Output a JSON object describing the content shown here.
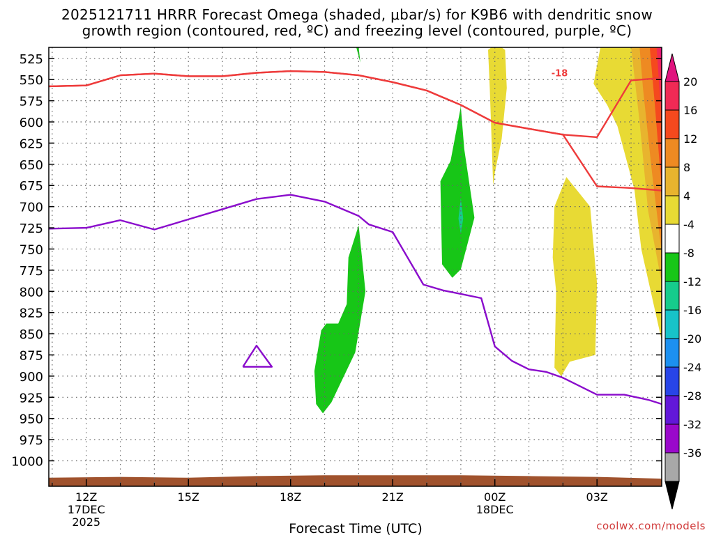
{
  "chart_data": {
    "type": "heatmap",
    "title_line1": "2025121711 HRRR Forecast Omega (shaded, μbar/s) for K9B6 with dendritic snow",
    "title_line2": "growth region (contoured, red, ºC) and freezing level (contoured, purple, ºC)",
    "xlabel": "Forecast Time (UTC)",
    "ylabel": "",
    "credit": "coolwx.com/models",
    "xlim": [
      10.9,
      28.9
    ],
    "ylim": [
      1030,
      512
    ],
    "x_ticks": [
      {
        "x": 12,
        "l1": "12Z",
        "l2": "17DEC",
        "l3": "2025"
      },
      {
        "x": 15,
        "l1": "15Z",
        "l2": "",
        "l3": ""
      },
      {
        "x": 18,
        "l1": "18Z",
        "l2": "",
        "l3": ""
      },
      {
        "x": 21,
        "l1": "21Z",
        "l2": "",
        "l3": ""
      },
      {
        "x": 24,
        "l1": "00Z",
        "l2": "18DEC",
        "l3": ""
      },
      {
        "x": 27,
        "l1": "03Z",
        "l2": "",
        "l3": ""
      }
    ],
    "y_ticks": [
      525,
      550,
      575,
      600,
      625,
      650,
      675,
      700,
      725,
      750,
      775,
      800,
      825,
      850,
      875,
      900,
      925,
      950,
      975,
      1000
    ],
    "contour_label": "-18",
    "colorbar": {
      "labels": [
        "20",
        "16",
        "12",
        "8",
        "4",
        "-4",
        "-8",
        "-12",
        "-16",
        "-20",
        "-24",
        "-28",
        "-32",
        "-36"
      ],
      "colors": [
        "#f02a55",
        "#f5491e",
        "#ee8a22",
        "#e8b42e",
        "#e8da34",
        "#ffffff",
        "#17c617",
        "#16cc8c",
        "#17c3c9",
        "#1c90f0",
        "#2845e8",
        "#6217d9",
        "#9a08cb",
        "#a8a8a8"
      ],
      "top_arrow_color": "#e0137e",
      "bottom_arrow_color": "#000000"
    },
    "series": [
      {
        "name": "",
        "role": "dgz_top",
        "color": "#ee3b3b",
        "x": [
          10.9,
          12,
          13,
          14,
          15,
          16,
          17,
          18,
          19,
          20,
          21,
          22,
          23,
          24,
          25,
          26,
          27,
          28,
          28.9
        ],
        "y": [
          558,
          557,
          545,
          543,
          546,
          546,
          542,
          540,
          541,
          545,
          553,
          563,
          580,
          601,
          608,
          615,
          618,
          551,
          548
        ]
      },
      {
        "name": "",
        "role": "dgz_bottom",
        "color": "#ee3b3b",
        "x": [
          10.9,
          12,
          13,
          14,
          15,
          16,
          17,
          18,
          19,
          20,
          21,
          22,
          23,
          24,
          25,
          26,
          27,
          28,
          28.9
        ],
        "y": [
          558,
          557,
          545,
          543,
          546,
          546,
          542,
          540,
          541,
          545,
          553,
          563,
          580,
          601,
          608,
          615,
          676,
          678,
          681
        ]
      },
      {
        "name": "",
        "role": "freezing_level",
        "color": "#8a0ccc",
        "x": [
          10.9,
          12,
          13,
          14,
          15,
          16,
          17,
          18,
          19,
          20,
          20.3,
          21,
          21.9,
          22.5,
          23,
          23.6,
          24,
          24.5,
          25,
          25.5,
          26,
          27,
          27.8,
          28.5,
          28.9
        ],
        "y": [
          726,
          725,
          716,
          727,
          715,
          703,
          691,
          686,
          694,
          711,
          721,
          730,
          792,
          799,
          803,
          808,
          865,
          882,
          892,
          895,
          902,
          922,
          922,
          928,
          933
        ]
      },
      {
        "name": "",
        "role": "freezing_level_loop",
        "color": "#8a0ccc",
        "x": [
          16.6,
          17.0,
          17.45,
          16.6
        ],
        "y": [
          889,
          864,
          889,
          889
        ]
      }
    ],
    "regions": [
      {
        "value": "-8",
        "color": "#17c617",
        "x": [
          19.65,
          19.7,
          20.0,
          20.2,
          19.9,
          19.2,
          18.95,
          18.75,
          18.7,
          18.9,
          19.05,
          19.4,
          19.65
        ],
        "y": [
          815,
          760,
          722,
          800,
          872,
          931,
          944,
          933,
          894,
          846,
          838,
          838,
          815
        ]
      },
      {
        "value": "-8",
        "color": "#17c617",
        "x": [
          23.0,
          23.1,
          23.4,
          23.0,
          22.75,
          22.45,
          22.4,
          22.7,
          23.0
        ],
        "y": [
          582,
          632,
          713,
          774,
          784,
          768,
          670,
          646,
          582
        ]
      },
      {
        "value": "-12",
        "color": "#16cc8c",
        "x": [
          23.0,
          23.07,
          23.0,
          22.93,
          23.0
        ],
        "y": [
          690,
          714,
          732,
          714,
          690
        ]
      },
      {
        "value": "4",
        "color": "#e8da34",
        "x": [
          24.3,
          24.35,
          24.2,
          24.0,
          23.95,
          23.85,
          23.8,
          23.9,
          24.2,
          24.3
        ],
        "y": [
          515,
          560,
          620,
          660,
          675,
          560,
          515,
          512,
          512,
          515
        ]
      },
      {
        "value": "4",
        "color": "#e8da34",
        "x": [
          26.8,
          26.95,
          27.0,
          26.95,
          26.2,
          25.95,
          25.75,
          25.8,
          25.7,
          25.75,
          26.1,
          26.3,
          26.8
        ],
        "y": [
          700,
          770,
          790,
          875,
          883,
          900,
          890,
          800,
          760,
          700,
          665,
          675,
          700
        ]
      },
      {
        "value": "4",
        "color": "#e8da34",
        "x": [
          27.1,
          27.7,
          28.3,
          28.9,
          28.9,
          28.3,
          28.1,
          27.6,
          27.3,
          26.9,
          27.1
        ],
        "y": [
          512,
          512,
          512,
          512,
          858,
          750,
          680,
          605,
          580,
          555,
          512
        ]
      },
      {
        "value": "8",
        "color": "#e8b42e",
        "x": [
          28.0,
          28.9,
          28.9,
          28.5,
          28.25,
          28.0
        ],
        "y": [
          512,
          512,
          790,
          705,
          600,
          512
        ]
      },
      {
        "value": "12",
        "color": "#ee8a22",
        "x": [
          28.25,
          28.9,
          28.9,
          28.6,
          28.35,
          28.25
        ],
        "y": [
          512,
          512,
          755,
          655,
          560,
          512
        ]
      },
      {
        "value": "16",
        "color": "#f5491e",
        "x": [
          28.55,
          28.9,
          28.9,
          28.7,
          28.55
        ],
        "y": [
          512,
          512,
          680,
          580,
          512
        ]
      },
      {
        "value": "20",
        "color": "#f02a55",
        "x": [
          28.75,
          28.9,
          28.9,
          28.75
        ],
        "y": [
          512,
          512,
          600,
          512
        ]
      },
      {
        "value": "",
        "color": "#e0137e",
        "x": [
          28.85,
          28.9,
          28.9,
          28.85
        ],
        "y": [
          512,
          512,
          560,
          512
        ]
      },
      {
        "value": "-8",
        "color": "#17c617",
        "x": [
          19.93,
          20.0,
          20.05,
          19.93
        ],
        "y": [
          512,
          512,
          530,
          512
        ]
      }
    ],
    "terrain": {
      "color": "#a0522d",
      "x": [
        10.9,
        13,
        15,
        17,
        19,
        21,
        23,
        25,
        27,
        28.9
      ],
      "y": [
        1020,
        1019,
        1020,
        1018,
        1017,
        1017,
        1017,
        1018,
        1019,
        1021
      ]
    }
  }
}
